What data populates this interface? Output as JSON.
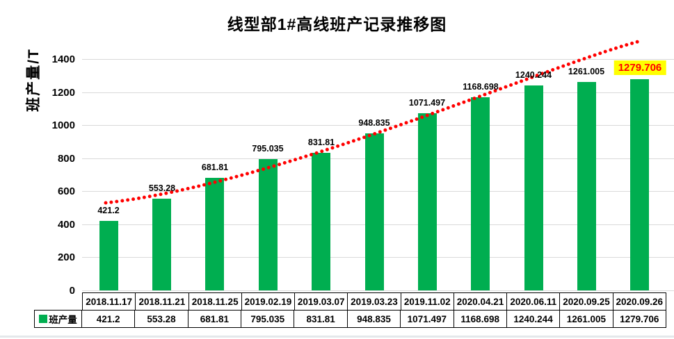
{
  "title": "线型部1#高线班产记录推移图",
  "y_axis_title": "班产量/T",
  "legend_label": "班产量",
  "colors": {
    "bar": "#00AE50",
    "trendline": "#FF0000",
    "highlight_bg": "#FFFF00",
    "highlight_text": "#FF0000",
    "gridline": "#d9d9d9",
    "table_border": "#000000"
  },
  "chart_data": {
    "type": "bar",
    "title": "线型部1#高线班产记录推移图",
    "xlabel": "",
    "ylabel": "班产量/T",
    "categories": [
      "2018.11.17",
      "2018.11.21",
      "2018.11.25",
      "2019.02.19",
      "2019.03.07",
      "2019.03.23",
      "2019.11.02",
      "2020.04.21",
      "2020.06.11",
      "2020.09.25",
      "2020.09.26"
    ],
    "series": [
      {
        "name": "班产量",
        "values": [
          421.2,
          553.28,
          681.81,
          795.035,
          831.81,
          948.835,
          1071.497,
          1168.698,
          1240.244,
          1261.005,
          1279.706
        ]
      }
    ],
    "labels": [
      "421.2",
      "553.28",
      "681.81",
      "795.035",
      "831.81",
      "948.835",
      "1071.497",
      "1168.698",
      "1240.244",
      "1261.005",
      "1279.706"
    ],
    "ylim": [
      0,
      1400
    ],
    "yticks": [
      0,
      200,
      400,
      600,
      800,
      1000,
      1200,
      1400
    ],
    "ytick_labels": [
      "0",
      "200",
      "400",
      "600",
      "800",
      "1000",
      "1200",
      "1400"
    ],
    "grid": true,
    "legend_position": "table-left",
    "trendline": {
      "shape": "power-fit",
      "style": "dotted",
      "color": "#FF0000"
    },
    "highlight_last_label": true,
    "data_table_shown": true
  }
}
